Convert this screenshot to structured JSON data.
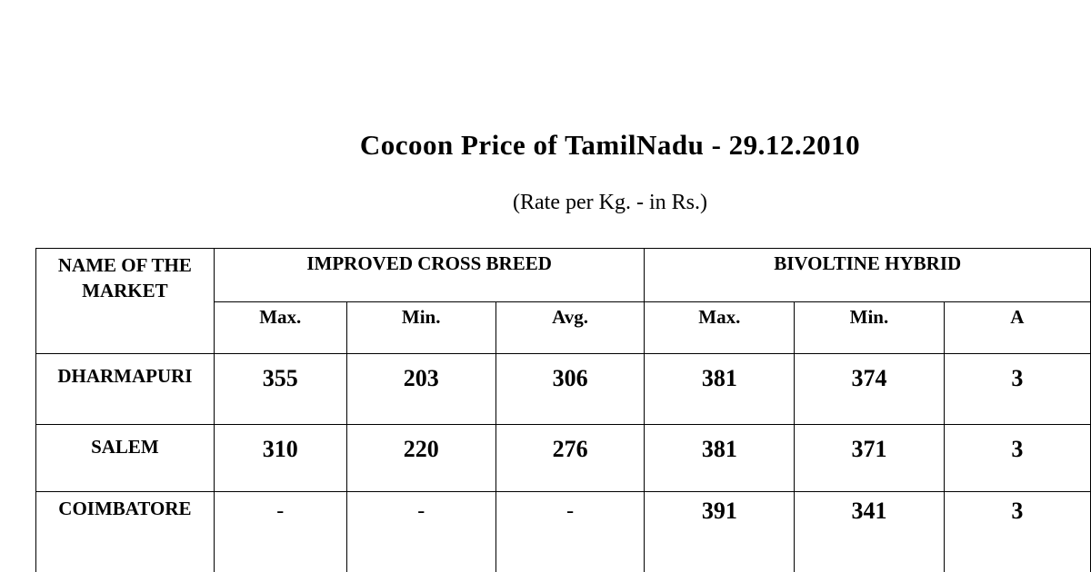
{
  "title": "Cocoon Price of TamilNadu - 29.12.2010",
  "subtitle": "(Rate per Kg. - in Rs.)",
  "table": {
    "market_header": "NAME OF THE MARKET",
    "groups": [
      "IMPROVED CROSS BREED",
      "BIVOLTINE HYBRID"
    ],
    "subheaders": [
      "Max.",
      "Min.",
      "Avg.",
      "Max.",
      "Min.",
      "A"
    ],
    "rows": [
      {
        "market": "DHARMAPURI",
        "values": [
          "355",
          "203",
          "306",
          "381",
          "374",
          "3"
        ]
      },
      {
        "market": "SALEM",
        "values": [
          "310",
          "220",
          "276",
          "381",
          "371",
          "3"
        ]
      },
      {
        "market": "COIMBATORE",
        "values": [
          "-",
          "-",
          "-",
          "391",
          "341",
          "3"
        ]
      }
    ]
  }
}
